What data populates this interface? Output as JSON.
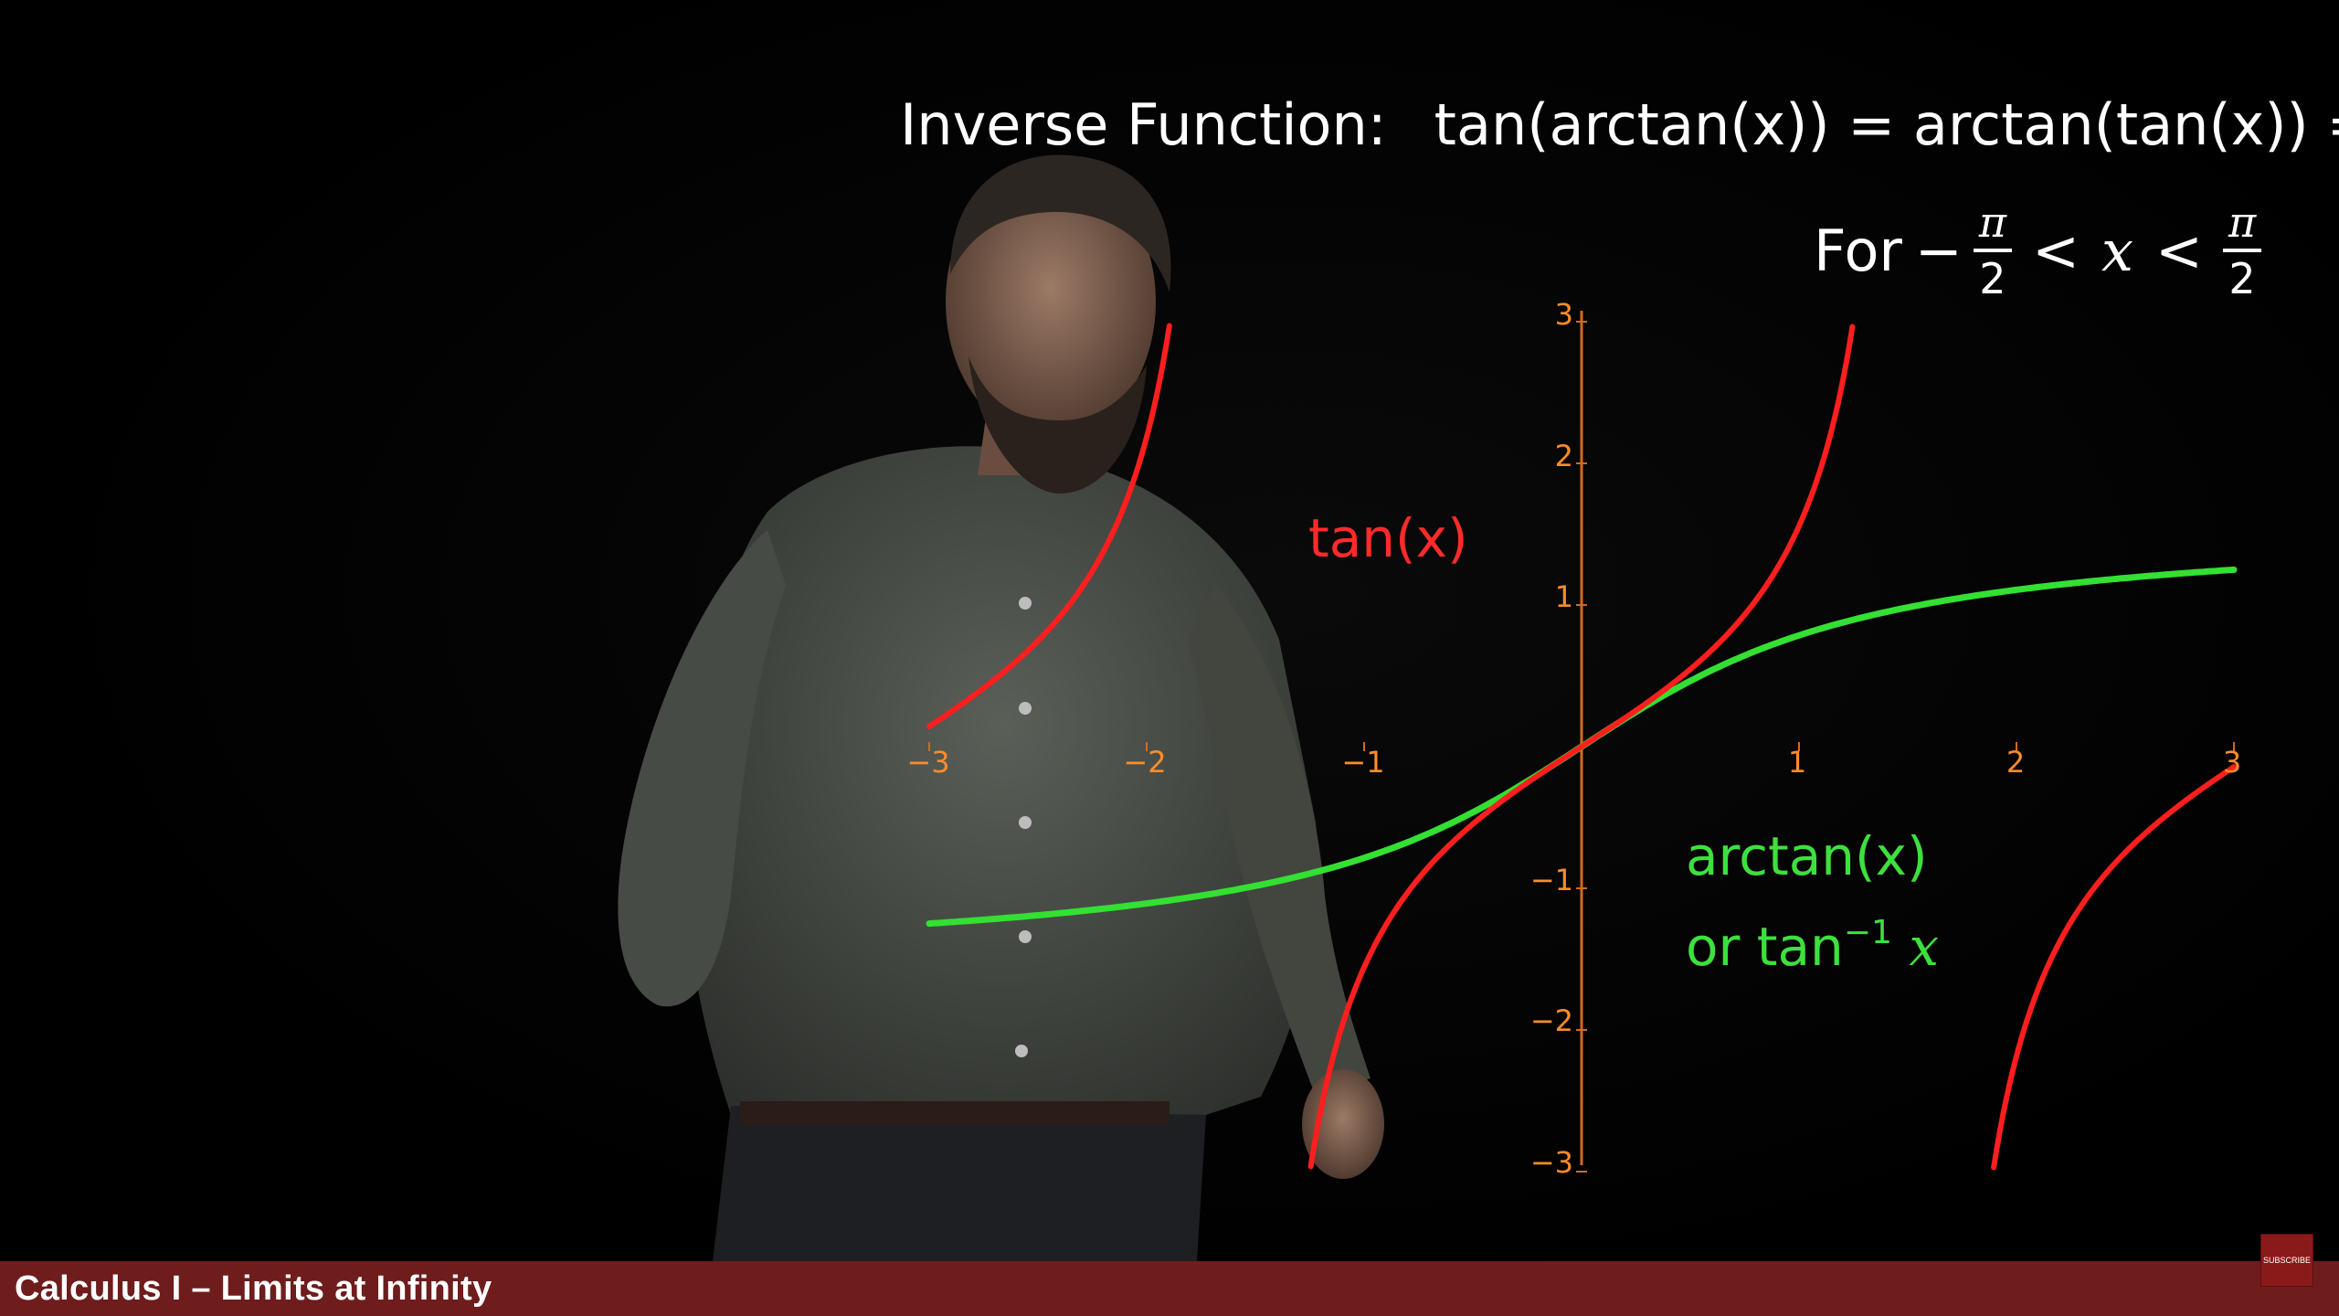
{
  "headline": {
    "label": "Inverse Function:",
    "identity": "tan(arctan(x)) = arctan(tan(x)) = x"
  },
  "domain": {
    "prefix": "For",
    "minus": "−",
    "pi": "π",
    "two": "2",
    "lt": "<",
    "var": "x"
  },
  "curves": {
    "tan_label": "tan(x)",
    "arctan_label": "arctan(x)",
    "arctan_alt_prefix": "or tan",
    "arctan_alt_exp": "−1",
    "arctan_alt_var": "x",
    "tan_color": "#ff1e1e",
    "arctan_color": "#33e033",
    "axis_color": "#d2691e"
  },
  "axes": {
    "x_ticks": [
      "−3",
      "−2",
      "−1",
      "1",
      "2",
      "3"
    ],
    "y_ticks": [
      "3",
      "2",
      "1",
      "−1",
      "−2",
      "−3"
    ]
  },
  "banner": {
    "title": "Calculus I – Limits at Infinity",
    "color": "#6e1c1c"
  },
  "subscribe_label": "SUBSCRIBE"
}
